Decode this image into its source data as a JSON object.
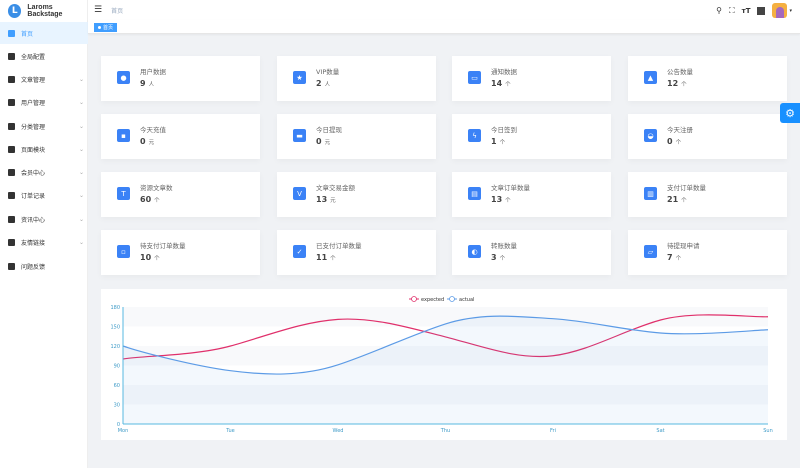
{
  "app": {
    "title": "Laroms Backstage",
    "logo_letter": "L"
  },
  "sidebar": {
    "items": [
      {
        "label": "首页",
        "icon": "home-icon",
        "active": true,
        "expandable": false
      },
      {
        "label": "全局配置",
        "icon": "gear-icon",
        "expandable": false
      },
      {
        "label": "文章管理",
        "icon": "article-icon",
        "expandable": true
      },
      {
        "label": "用户管理",
        "icon": "user-icon",
        "expandable": true
      },
      {
        "label": "分类管理",
        "icon": "grid-icon",
        "expandable": true
      },
      {
        "label": "页面模块",
        "icon": "monitor-icon",
        "expandable": true
      },
      {
        "label": "会员中心",
        "icon": "member-icon",
        "expandable": true
      },
      {
        "label": "订单记录",
        "icon": "order-icon",
        "expandable": true
      },
      {
        "label": "资讯中心",
        "icon": "info-icon",
        "expandable": true
      },
      {
        "label": "友情链接",
        "icon": "flag-icon",
        "expandable": true
      },
      {
        "label": "问题反馈",
        "icon": "feedback-icon",
        "expandable": false
      }
    ]
  },
  "navbar": {
    "breadcrumb": "首页",
    "icons": [
      "search-icon",
      "fullscreen-icon",
      "font-size-icon",
      "language-icon"
    ]
  },
  "tags": {
    "active": "首页"
  },
  "cards": [
    {
      "title": "用户数据",
      "value": "9",
      "unit": "人",
      "icon": "user-icon"
    },
    {
      "title": "VIP数量",
      "value": "2",
      "unit": "人",
      "icon": "vip-icon"
    },
    {
      "title": "通知数据",
      "value": "14",
      "unit": "个",
      "icon": "message-icon"
    },
    {
      "title": "公告数量",
      "value": "12",
      "unit": "个",
      "icon": "bell-icon"
    },
    {
      "title": "今天充值",
      "value": "0",
      "unit": "元",
      "icon": "wallet-icon"
    },
    {
      "title": "今日提现",
      "value": "0",
      "unit": "元",
      "icon": "withdraw-icon"
    },
    {
      "title": "今日签到",
      "value": "1",
      "unit": "个",
      "icon": "lightning-icon"
    },
    {
      "title": "今天注册",
      "value": "0",
      "unit": "个",
      "icon": "register-icon"
    },
    {
      "title": "资源文章数",
      "value": "60",
      "unit": "个",
      "icon": "article-icon"
    },
    {
      "title": "文章交易金额",
      "value": "13",
      "unit": "元",
      "icon": "vip-card-icon"
    },
    {
      "title": "文章订单数量",
      "value": "13",
      "unit": "个",
      "icon": "save-icon"
    },
    {
      "title": "支付订单数量",
      "value": "21",
      "unit": "个",
      "icon": "payment-icon"
    },
    {
      "title": "待支付订单数量",
      "value": "10",
      "unit": "个",
      "icon": "pending-order-icon"
    },
    {
      "title": "已支付订单数量",
      "value": "11",
      "unit": "个",
      "icon": "paid-order-icon"
    },
    {
      "title": "转账数量",
      "value": "3",
      "unit": "个",
      "icon": "transfer-icon"
    },
    {
      "title": "待提现申请",
      "value": "7",
      "unit": "个",
      "icon": "apply-icon"
    }
  ],
  "chart_data": {
    "type": "line",
    "categories": [
      "Mon",
      "Tue",
      "Wed",
      "Thu",
      "Fri",
      "Sat",
      "Sun"
    ],
    "series": [
      {
        "name": "expected",
        "values": [
          100,
          120,
          161,
          134,
          105,
          160,
          165
        ],
        "color": "#e0306b"
      },
      {
        "name": "actual",
        "values": [
          120,
          82,
          91,
          154,
          162,
          140,
          145
        ],
        "color": "#5c9be6",
        "area": true
      }
    ],
    "yticks": [
      0,
      30,
      60,
      90,
      120,
      150,
      180
    ],
    "ylim": [
      0,
      180
    ],
    "legend": "top-center",
    "smooth": true
  }
}
